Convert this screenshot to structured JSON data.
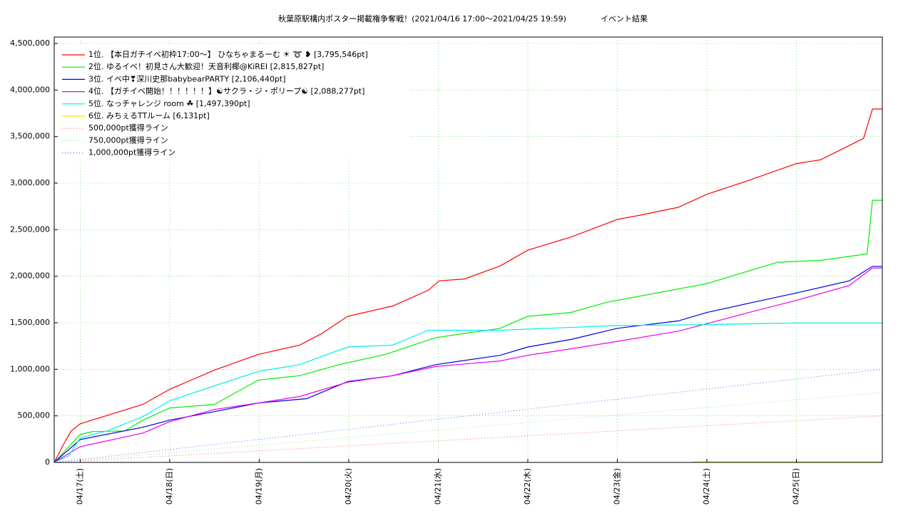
{
  "chart_data": {
    "type": "line",
    "title": "秋葉原駅構内ポスター掲載権争奪戦！(2021/04/16 17:00〜2021/04/25 19:59)",
    "subtitle": "イベント結果",
    "xlim": [
      16.71,
      25.96
    ],
    "xticks": [
      {
        "value": 17,
        "label": "04/17(土)"
      },
      {
        "value": 18,
        "label": "04/18(日)"
      },
      {
        "value": 19,
        "label": "04/19(月)"
      },
      {
        "value": 20,
        "label": "04/20(火)"
      },
      {
        "value": 21,
        "label": "04/21(水)"
      },
      {
        "value": 22,
        "label": "04/22(木)"
      },
      {
        "value": 23,
        "label": "04/23(金)"
      },
      {
        "value": 24,
        "label": "04/24(土)"
      },
      {
        "value": 25,
        "label": "04/25(日)"
      }
    ],
    "ylim": [
      0,
      4500000
    ],
    "yticks": [
      0,
      {
        "value": 500000,
        "label": "500,000"
      },
      {
        "value": 1000000,
        "label": "1,000,000"
      },
      {
        "value": 1500000,
        "label": "1,500,000"
      },
      {
        "value": 2000000,
        "label": "2,000,000"
      },
      {
        "value": 2500000,
        "label": "2,500,000"
      },
      {
        "value": 3000000,
        "label": "3,000,000"
      },
      {
        "value": 3500000,
        "label": "3,500,000"
      },
      {
        "value": 4000000,
        "label": "4,000,000"
      },
      {
        "value": 4500000,
        "label": "4,500,000"
      }
    ],
    "grid": true,
    "legend": "upper-left",
    "series": [
      {
        "name": "1位. 【本日ガチイベ初枠17:00〜】 ひなちゃまるーむ ☀ ➰ ❥ [3,795,546pt]",
        "color": "#ff0000",
        "style": "solid",
        "x": [
          16.71,
          16.83,
          16.9,
          17.0,
          17.7,
          18.0,
          18.5,
          18.99,
          19.45,
          19.69,
          19.99,
          20.49,
          20.89,
          21.01,
          21.29,
          21.69,
          22.0,
          22.48,
          23.0,
          23.28,
          23.68,
          24.0,
          24.47,
          25.0,
          25.27,
          25.75,
          25.85,
          25.96
        ],
        "values": [
          0,
          223000,
          338000,
          415000,
          623000,
          785000,
          992000,
          1160000,
          1260000,
          1380000,
          1570000,
          1680000,
          1850000,
          1950000,
          1970000,
          2110000,
          2280000,
          2420000,
          2610000,
          2660000,
          2740000,
          2880000,
          3030000,
          3210000,
          3250000,
          3480000,
          3795546,
          3795546
        ]
      },
      {
        "name": "2位. ゆるイベ！初見さん大歓迎！天音利椰@KiREI [2,815,827pt]",
        "color": "#00ee00",
        "style": "solid",
        "x": [
          16.71,
          17.0,
          17.14,
          17.5,
          17.7,
          18.0,
          18.5,
          18.99,
          19.45,
          19.89,
          20.41,
          20.97,
          21.69,
          22.0,
          22.48,
          22.88,
          24.0,
          24.79,
          25.27,
          25.79,
          25.85,
          25.96
        ],
        "values": [
          0,
          300000,
          331000,
          338000,
          454000,
          585000,
          623000,
          885000,
          931000,
          1050000,
          1160000,
          1340000,
          1440000,
          1570000,
          1610000,
          1720000,
          1920000,
          2150000,
          2170000,
          2240000,
          2815827,
          2815827
        ]
      },
      {
        "name": "3位. イベ中❣深川史那babybearPARTY [2,106,440pt]",
        "color": "#0000dd",
        "style": "solid",
        "x": [
          16.71,
          17.0,
          17.7,
          18.0,
          18.5,
          18.99,
          19.53,
          19.99,
          20.49,
          20.97,
          21.69,
          22.0,
          22.48,
          23.0,
          23.68,
          24.0,
          24.47,
          25.0,
          25.59,
          25.85,
          25.96
        ],
        "values": [
          0,
          246000,
          377000,
          454000,
          546000,
          638000,
          685000,
          869000,
          931000,
          1050000,
          1150000,
          1240000,
          1320000,
          1440000,
          1520000,
          1610000,
          1710000,
          1820000,
          1950000,
          2106440,
          2106440
        ]
      },
      {
        "name": "4位. 【ガチイベ開始！！！！！！】☯サクラ・ジ・ポリープ☯ [2,088,277pt]",
        "color": "#ee00ee",
        "style": "solid",
        "x": [
          16.71,
          17.0,
          17.7,
          18.0,
          18.5,
          18.99,
          19.45,
          19.99,
          20.49,
          20.97,
          21.69,
          22.0,
          22.48,
          23.0,
          23.68,
          24.0,
          24.47,
          25.0,
          25.59,
          25.85,
          25.96
        ],
        "values": [
          0,
          169000,
          315000,
          438000,
          569000,
          638000,
          708000,
          862000,
          931000,
          1030000,
          1090000,
          1150000,
          1220000,
          1300000,
          1410000,
          1490000,
          1610000,
          1740000,
          1900000,
          2088277,
          2088277
        ]
      },
      {
        "name": "5位. なっチャレンジ room ☘ [1,497,390pt]",
        "color": "#00eeee",
        "style": "solid",
        "x": [
          16.71,
          16.87,
          17.0,
          17.3,
          17.7,
          18.0,
          18.5,
          18.99,
          19.45,
          19.99,
          20.49,
          20.89,
          21.69,
          23.0,
          24.0,
          25.0,
          25.96
        ],
        "values": [
          0,
          69000,
          262000,
          338000,
          492000,
          662000,
          823000,
          977000,
          1050000,
          1240000,
          1260000,
          1420000,
          1420000,
          1470000,
          1480000,
          1497390,
          1497390
        ]
      },
      {
        "name": "6位. みちぇるTTルーム [6,131pt]",
        "color": "#eeee00",
        "style": "solid",
        "x": [
          23.84,
          25.96
        ],
        "values": [
          6131,
          6131
        ]
      },
      {
        "name": "500,000pt獲得ライン",
        "color": "#ff6666",
        "style": "dotted",
        "x": [
          16.71,
          25.96
        ],
        "values": [
          0,
          500000
        ]
      },
      {
        "name": "750,000pt獲得ライン",
        "color": "#88ee88",
        "style": "dotted",
        "x": [
          16.71,
          25.96
        ],
        "values": [
          0,
          750000
        ]
      },
      {
        "name": "1,000,000pt獲得ライン",
        "color": "#6666ff",
        "style": "dotted",
        "x": [
          16.71,
          25.96
        ],
        "values": [
          0,
          1000000
        ]
      }
    ]
  }
}
